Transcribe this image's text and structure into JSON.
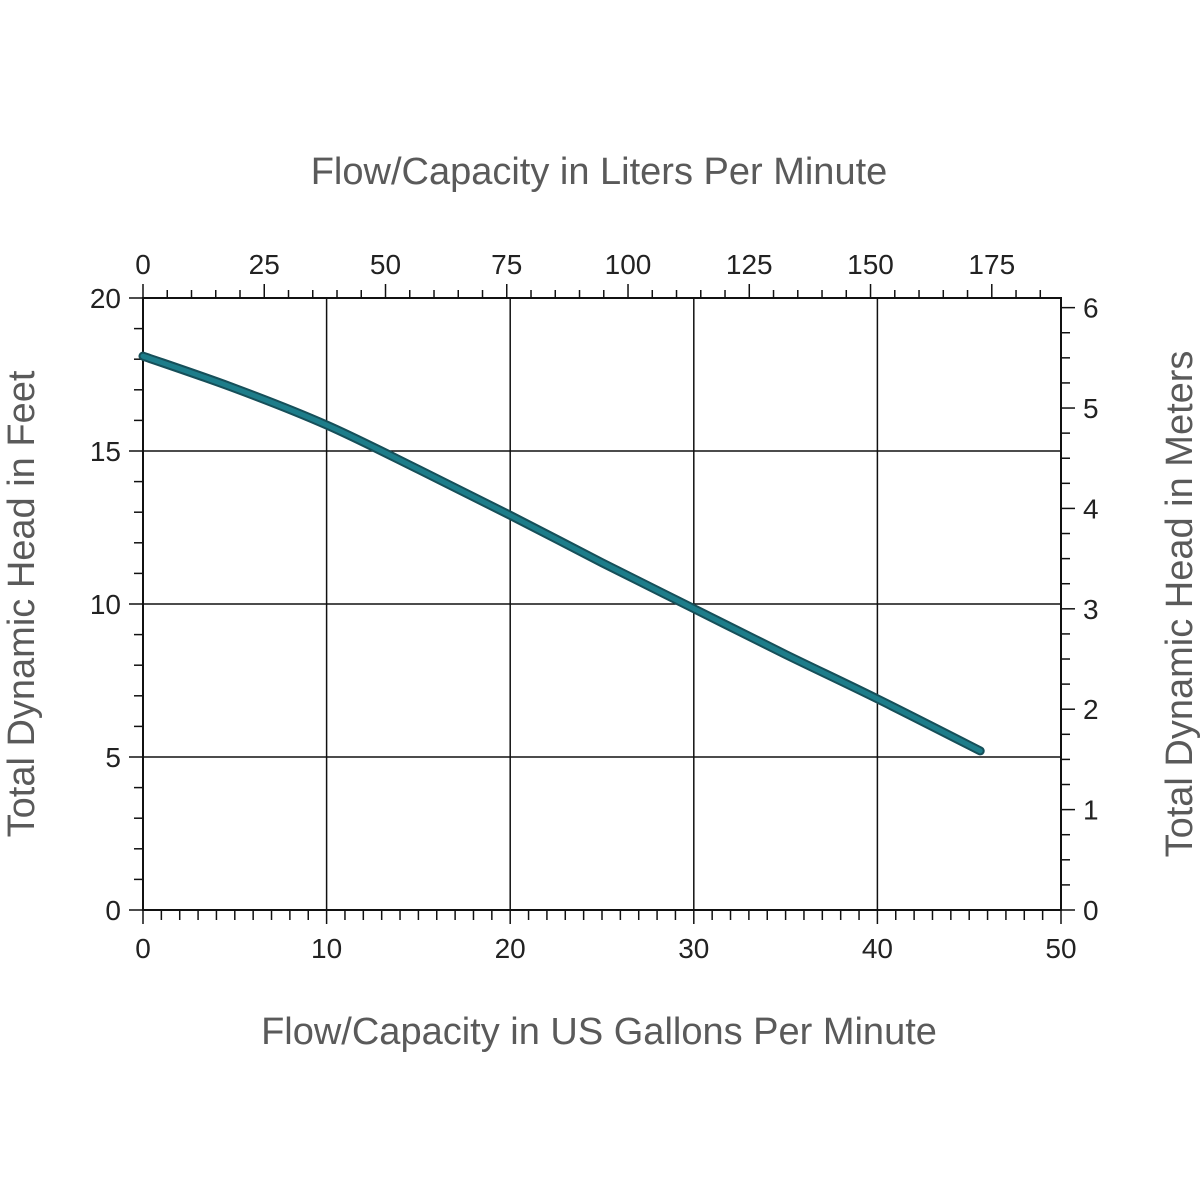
{
  "chart_data": {
    "type": "line",
    "top_axis_title": "Flow/Capacity in Liters Per Minute",
    "xlabel": "Flow/Capacity in US Gallons Per Minute",
    "ylabel": "Total Dynamic Head in Feet",
    "ylabel_right": "Total Dynamic Head in Meters",
    "xlim": [
      0,
      50
    ],
    "ylim": [
      0,
      20
    ],
    "x_ticks": [
      "0",
      "10",
      "20",
      "30",
      "40",
      "50"
    ],
    "y_ticks": [
      "0",
      "5",
      "10",
      "15",
      "20"
    ],
    "top_ticks": [
      "0",
      "25",
      "50",
      "75",
      "100",
      "125",
      "150",
      "175"
    ],
    "right_ticks": [
      "0",
      "1",
      "2",
      "3",
      "4",
      "5",
      "6"
    ],
    "grid": true,
    "series": [
      {
        "color": "#1d7d8a",
        "x": [
          0,
          5,
          10,
          15,
          20,
          25,
          30,
          35,
          40,
          45.6
        ],
        "y": [
          18.1,
          17.05,
          15.85,
          14.4,
          12.9,
          11.35,
          9.85,
          8.35,
          6.9,
          5.2
        ]
      }
    ]
  }
}
